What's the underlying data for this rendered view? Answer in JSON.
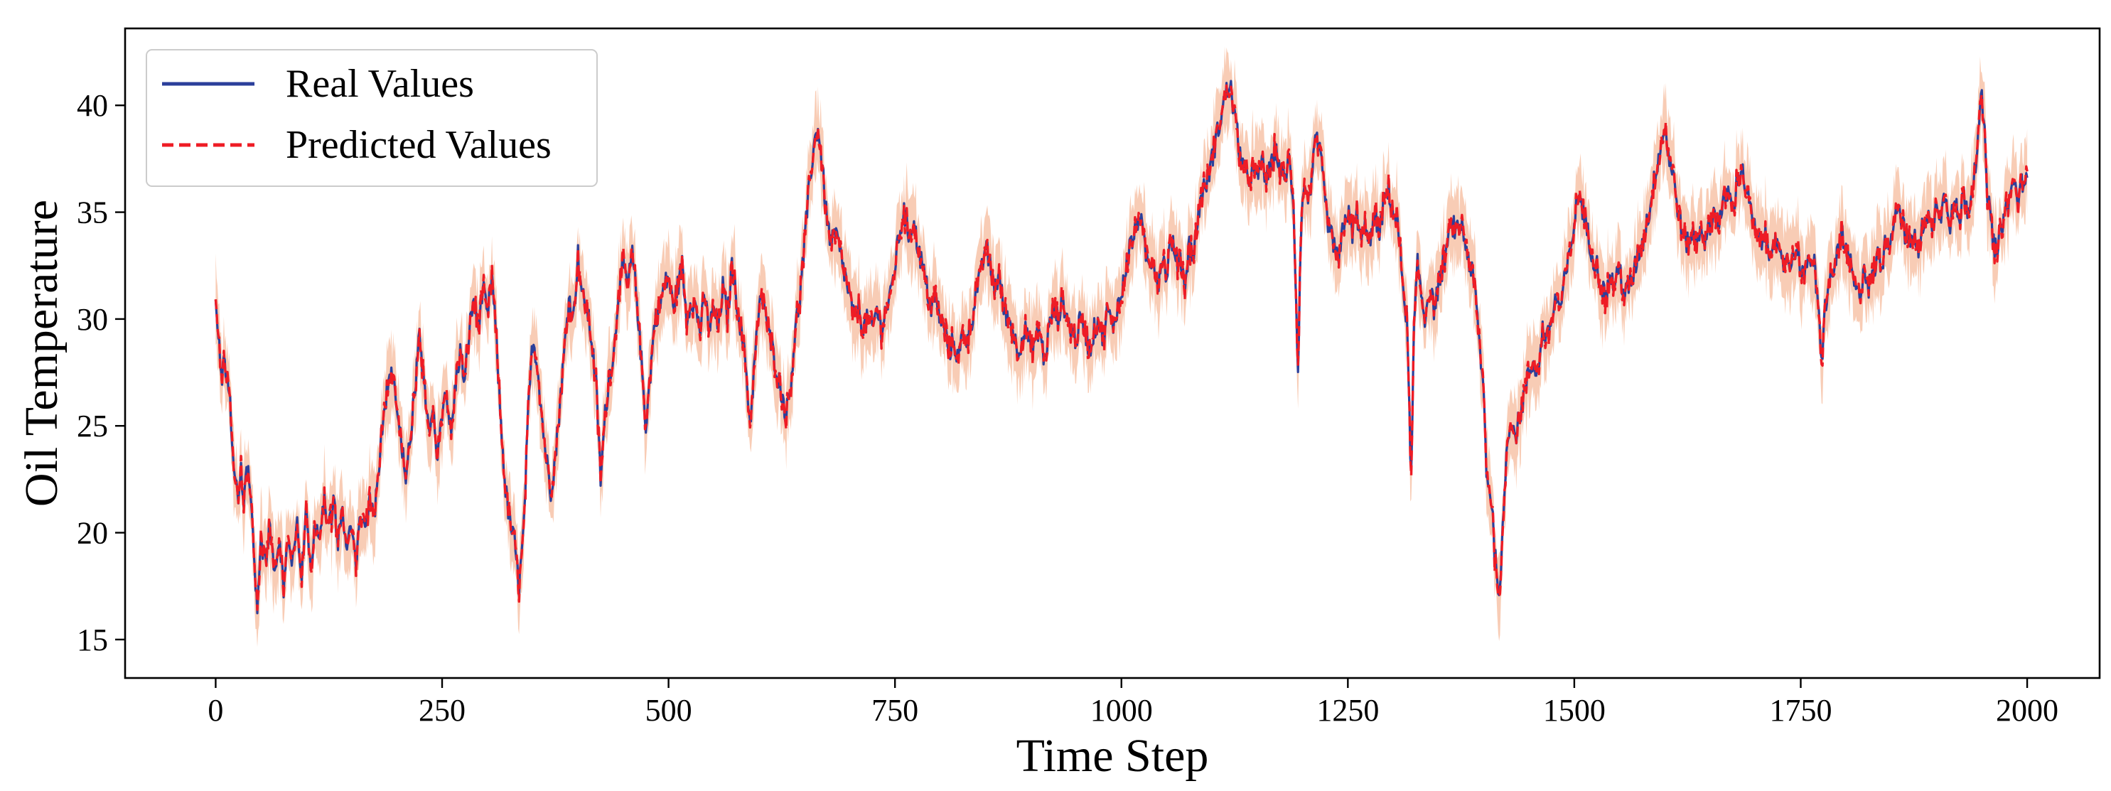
{
  "chart_data": {
    "type": "line",
    "title": "",
    "xlabel": "Time Step",
    "ylabel": "Oil Temperature",
    "xlim": [
      -100,
      2080
    ],
    "ylim": [
      13.2,
      43.6
    ],
    "xticks": [
      0,
      250,
      500,
      750,
      1000,
      1250,
      1500,
      1750,
      2000
    ],
    "yticks": [
      15,
      20,
      25,
      30,
      35,
      40
    ],
    "grid": false,
    "legend": {
      "position": "top-left"
    },
    "colors": {
      "real": "#2b3f9b",
      "predicted": "#ee1c25",
      "band": "#f7c3a8"
    },
    "series": [
      {
        "name": "Real Values",
        "style": "solid"
      },
      {
        "name": "Predicted Values",
        "style": "dashed"
      }
    ],
    "x_range": [
      0,
      2000
    ],
    "anchors": [
      [
        0,
        30.5
      ],
      [
        3,
        29.5
      ],
      [
        6,
        27.2
      ],
      [
        9,
        27.8
      ],
      [
        12,
        27.5
      ],
      [
        15,
        27.0
      ],
      [
        18,
        24.5
      ],
      [
        21,
        22.8
      ],
      [
        25,
        21.0
      ],
      [
        28,
        22.8
      ],
      [
        31,
        21.5
      ],
      [
        34,
        23.5
      ],
      [
        37,
        22.2
      ],
      [
        40,
        20.8
      ],
      [
        43,
        18.2
      ],
      [
        46,
        16.5
      ],
      [
        50,
        19.8
      ],
      [
        55,
        18.5
      ],
      [
        60,
        20.5
      ],
      [
        65,
        18.2
      ],
      [
        70,
        19.8
      ],
      [
        75,
        17.5
      ],
      [
        80,
        19.5
      ],
      [
        85,
        18.5
      ],
      [
        90,
        20.2
      ],
      [
        95,
        18.0
      ],
      [
        100,
        21.0
      ],
      [
        105,
        18.5
      ],
      [
        110,
        20.5
      ],
      [
        115,
        19.5
      ],
      [
        120,
        21.5
      ],
      [
        125,
        20.0
      ],
      [
        130,
        21.5
      ],
      [
        135,
        19.5
      ],
      [
        140,
        21.2
      ],
      [
        145,
        19.0
      ],
      [
        150,
        20.5
      ],
      [
        155,
        18.5
      ],
      [
        160,
        21.0
      ],
      [
        165,
        20.0
      ],
      [
        170,
        21.5
      ],
      [
        175,
        20.8
      ],
      [
        180,
        23.0
      ],
      [
        185,
        25.5
      ],
      [
        190,
        26.8
      ],
      [
        195,
        27.5
      ],
      [
        200,
        26.0
      ],
      [
        205,
        24.0
      ],
      [
        210,
        22.8
      ],
      [
        215,
        24.5
      ],
      [
        220,
        26.5
      ],
      [
        225,
        29.2
      ],
      [
        230,
        27.0
      ],
      [
        235,
        25.0
      ],
      [
        240,
        25.5
      ],
      [
        245,
        23.5
      ],
      [
        250,
        25.5
      ],
      [
        255,
        26.5
      ],
      [
        260,
        24.5
      ],
      [
        265,
        27.0
      ],
      [
        270,
        28.5
      ],
      [
        275,
        27.0
      ],
      [
        280,
        29.5
      ],
      [
        285,
        31.0
      ],
      [
        290,
        29.5
      ],
      [
        295,
        31.5
      ],
      [
        300,
        30.0
      ],
      [
        305,
        32.0
      ],
      [
        310,
        29.0
      ],
      [
        315,
        25.0
      ],
      [
        320,
        22.0
      ],
      [
        325,
        20.5
      ],
      [
        330,
        19.5
      ],
      [
        335,
        17.5
      ],
      [
        340,
        20.0
      ],
      [
        345,
        25.5
      ],
      [
        350,
        29.0
      ],
      [
        355,
        28.0
      ],
      [
        360,
        25.5
      ],
      [
        365,
        23.5
      ],
      [
        370,
        22.0
      ],
      [
        375,
        23.5
      ],
      [
        380,
        26.0
      ],
      [
        385,
        28.5
      ],
      [
        390,
        31.0
      ],
      [
        395,
        30.0
      ],
      [
        400,
        33.0
      ],
      [
        405,
        31.0
      ],
      [
        410,
        30.5
      ],
      [
        415,
        29.0
      ],
      [
        420,
        27.0
      ],
      [
        425,
        22.5
      ],
      [
        430,
        25.5
      ],
      [
        435,
        27.5
      ],
      [
        440,
        28.5
      ],
      [
        445,
        31.5
      ],
      [
        450,
        32.5
      ],
      [
        455,
        31.5
      ],
      [
        460,
        33.0
      ],
      [
        465,
        31.0
      ],
      [
        470,
        28.0
      ],
      [
        475,
        25.0
      ],
      [
        480,
        27.5
      ],
      [
        485,
        30.0
      ],
      [
        490,
        30.5
      ],
      [
        495,
        31.5
      ],
      [
        500,
        32.0
      ],
      [
        505,
        30.5
      ],
      [
        510,
        31.5
      ],
      [
        515,
        32.5
      ],
      [
        520,
        30.0
      ],
      [
        525,
        31.0
      ],
      [
        530,
        30.5
      ],
      [
        535,
        29.5
      ],
      [
        540,
        31.0
      ],
      [
        545,
        29.5
      ],
      [
        550,
        30.5
      ],
      [
        555,
        29.5
      ],
      [
        560,
        31.5
      ],
      [
        565,
        30.0
      ],
      [
        570,
        32.5
      ],
      [
        575,
        31.0
      ],
      [
        580,
        29.5
      ],
      [
        585,
        28.0
      ],
      [
        590,
        25.0
      ],
      [
        595,
        28.0
      ],
      [
        600,
        30.5
      ],
      [
        605,
        31.0
      ],
      [
        610,
        29.5
      ],
      [
        615,
        28.5
      ],
      [
        620,
        27.5
      ],
      [
        625,
        26.5
      ],
      [
        630,
        25.5
      ],
      [
        635,
        27.0
      ],
      [
        640,
        29.5
      ],
      [
        645,
        31.0
      ],
      [
        650,
        33.5
      ],
      [
        655,
        36.0
      ],
      [
        660,
        38.0
      ],
      [
        665,
        39.0
      ],
      [
        670,
        37.0
      ],
      [
        675,
        34.5
      ],
      [
        680,
        33.5
      ],
      [
        685,
        34.0
      ],
      [
        690,
        33.0
      ],
      [
        695,
        32.0
      ],
      [
        700,
        31.0
      ],
      [
        705,
        30.0
      ],
      [
        710,
        30.5
      ],
      [
        715,
        29.5
      ],
      [
        720,
        30.0
      ],
      [
        725,
        29.5
      ],
      [
        730,
        30.5
      ],
      [
        735,
        29.5
      ],
      [
        740,
        30.5
      ],
      [
        745,
        31.0
      ],
      [
        750,
        32.5
      ],
      [
        755,
        34.0
      ],
      [
        760,
        35.0
      ],
      [
        765,
        34.0
      ],
      [
        770,
        34.5
      ],
      [
        775,
        33.5
      ],
      [
        780,
        32.5
      ],
      [
        785,
        31.5
      ],
      [
        790,
        30.5
      ],
      [
        795,
        31.0
      ],
      [
        800,
        30.0
      ],
      [
        805,
        29.5
      ],
      [
        810,
        28.5
      ],
      [
        815,
        29.0
      ],
      [
        820,
        28.0
      ],
      [
        825,
        29.5
      ],
      [
        830,
        29.0
      ],
      [
        835,
        30.0
      ],
      [
        840,
        31.5
      ],
      [
        845,
        32.0
      ],
      [
        850,
        33.5
      ],
      [
        855,
        32.5
      ],
      [
        860,
        31.5
      ],
      [
        865,
        32.0
      ],
      [
        870,
        30.5
      ],
      [
        875,
        30.0
      ],
      [
        880,
        29.5
      ],
      [
        885,
        28.5
      ],
      [
        890,
        29.0
      ],
      [
        895,
        29.5
      ],
      [
        900,
        28.5
      ],
      [
        905,
        29.0
      ],
      [
        910,
        29.5
      ],
      [
        915,
        28.0
      ],
      [
        920,
        29.5
      ],
      [
        925,
        30.5
      ],
      [
        930,
        30.0
      ],
      [
        935,
        31.0
      ],
      [
        940,
        30.0
      ],
      [
        945,
        29.5
      ],
      [
        950,
        29.0
      ],
      [
        955,
        30.0
      ],
      [
        960,
        29.5
      ],
      [
        965,
        28.5
      ],
      [
        970,
        29.5
      ],
      [
        975,
        30.0
      ],
      [
        980,
        29.0
      ],
      [
        985,
        30.5
      ],
      [
        990,
        29.5
      ],
      [
        995,
        30.5
      ],
      [
        1000,
        31.0
      ],
      [
        1005,
        32.5
      ],
      [
        1010,
        33.5
      ],
      [
        1015,
        34.0
      ],
      [
        1020,
        35.0
      ],
      [
        1025,
        33.5
      ],
      [
        1030,
        32.5
      ],
      [
        1035,
        33.0
      ],
      [
        1040,
        31.5
      ],
      [
        1045,
        33.0
      ],
      [
        1050,
        32.0
      ],
      [
        1055,
        34.0
      ],
      [
        1060,
        32.5
      ],
      [
        1065,
        33.0
      ],
      [
        1070,
        31.5
      ],
      [
        1075,
        33.5
      ],
      [
        1080,
        33.0
      ],
      [
        1085,
        35.0
      ],
      [
        1090,
        36.0
      ],
      [
        1095,
        36.5
      ],
      [
        1100,
        37.5
      ],
      [
        1105,
        38.5
      ],
      [
        1110,
        39.5
      ],
      [
        1115,
        40.5
      ],
      [
        1120,
        41.0
      ],
      [
        1125,
        39.5
      ],
      [
        1130,
        38.0
      ],
      [
        1135,
        37.0
      ],
      [
        1140,
        36.5
      ],
      [
        1145,
        37.0
      ],
      [
        1150,
        36.5
      ],
      [
        1155,
        37.5
      ],
      [
        1160,
        36.5
      ],
      [
        1165,
        37.0
      ],
      [
        1170,
        38.0
      ],
      [
        1175,
        37.0
      ],
      [
        1180,
        36.5
      ],
      [
        1185,
        37.5
      ],
      [
        1190,
        35.5
      ],
      [
        1195,
        27.5
      ],
      [
        1198,
        34.0
      ],
      [
        1202,
        36.5
      ],
      [
        1205,
        35.5
      ],
      [
        1210,
        36.5
      ],
      [
        1215,
        38.5
      ],
      [
        1220,
        37.5
      ],
      [
        1225,
        35.5
      ],
      [
        1230,
        34.0
      ],
      [
        1235,
        33.5
      ],
      [
        1240,
        32.5
      ],
      [
        1245,
        34.5
      ],
      [
        1250,
        35.0
      ],
      [
        1255,
        34.0
      ],
      [
        1260,
        35.0
      ],
      [
        1265,
        33.5
      ],
      [
        1270,
        34.5
      ],
      [
        1275,
        33.5
      ],
      [
        1280,
        35.0
      ],
      [
        1285,
        34.0
      ],
      [
        1290,
        35.5
      ],
      [
        1295,
        36.0
      ],
      [
        1300,
        35.0
      ],
      [
        1305,
        34.5
      ],
      [
        1310,
        32.0
      ],
      [
        1315,
        30.0
      ],
      [
        1320,
        22.5
      ],
      [
        1323,
        29.5
      ],
      [
        1327,
        32.5
      ],
      [
        1330,
        31.5
      ],
      [
        1335,
        30.0
      ],
      [
        1340,
        31.5
      ],
      [
        1345,
        30.5
      ],
      [
        1350,
        31.5
      ],
      [
        1355,
        32.5
      ],
      [
        1360,
        33.5
      ],
      [
        1365,
        34.5
      ],
      [
        1370,
        34.0
      ],
      [
        1375,
        34.5
      ],
      [
        1380,
        33.5
      ],
      [
        1385,
        32.5
      ],
      [
        1390,
        31.5
      ],
      [
        1395,
        29.0
      ],
      [
        1400,
        26.5
      ],
      [
        1403,
        23.0
      ],
      [
        1406,
        22.0
      ],
      [
        1409,
        21.5
      ],
      [
        1412,
        19.0
      ],
      [
        1415,
        18.0
      ],
      [
        1418,
        17.0
      ],
      [
        1421,
        20.0
      ],
      [
        1424,
        23.0
      ],
      [
        1427,
        24.5
      ],
      [
        1430,
        25.5
      ],
      [
        1435,
        24.5
      ],
      [
        1440,
        25.5
      ],
      [
        1445,
        26.5
      ],
      [
        1450,
        27.5
      ],
      [
        1455,
        28.0
      ],
      [
        1460,
        27.5
      ],
      [
        1465,
        29.5
      ],
      [
        1470,
        29.0
      ],
      [
        1475,
        30.0
      ],
      [
        1480,
        31.0
      ],
      [
        1485,
        30.5
      ],
      [
        1490,
        32.0
      ],
      [
        1495,
        33.0
      ],
      [
        1500,
        34.5
      ],
      [
        1505,
        36.0
      ],
      [
        1510,
        35.0
      ],
      [
        1515,
        34.0
      ],
      [
        1520,
        33.0
      ],
      [
        1525,
        32.5
      ],
      [
        1530,
        31.5
      ],
      [
        1535,
        31.0
      ],
      [
        1540,
        32.0
      ],
      [
        1545,
        31.5
      ],
      [
        1550,
        32.5
      ],
      [
        1555,
        31.0
      ],
      [
        1560,
        31.5
      ],
      [
        1565,
        32.0
      ],
      [
        1570,
        33.0
      ],
      [
        1575,
        33.5
      ],
      [
        1580,
        34.5
      ],
      [
        1585,
        35.5
      ],
      [
        1590,
        37.0
      ],
      [
        1595,
        38.0
      ],
      [
        1600,
        39.0
      ],
      [
        1605,
        37.5
      ],
      [
        1610,
        36.5
      ],
      [
        1615,
        35.0
      ],
      [
        1620,
        34.0
      ],
      [
        1625,
        33.5
      ],
      [
        1630,
        34.0
      ],
      [
        1635,
        33.5
      ],
      [
        1640,
        34.5
      ],
      [
        1645,
        33.5
      ],
      [
        1650,
        34.5
      ],
      [
        1655,
        35.0
      ],
      [
        1660,
        34.5
      ],
      [
        1665,
        35.5
      ],
      [
        1670,
        36.0
      ],
      [
        1675,
        35.0
      ],
      [
        1680,
        36.5
      ],
      [
        1685,
        37.0
      ],
      [
        1690,
        36.0
      ],
      [
        1695,
        35.0
      ],
      [
        1700,
        34.0
      ],
      [
        1705,
        33.5
      ],
      [
        1710,
        34.0
      ],
      [
        1715,
        33.0
      ],
      [
        1720,
        34.0
      ],
      [
        1725,
        33.0
      ],
      [
        1730,
        32.5
      ],
      [
        1735,
        33.0
      ],
      [
        1740,
        32.5
      ],
      [
        1745,
        33.5
      ],
      [
        1750,
        32.5
      ],
      [
        1755,
        32.0
      ],
      [
        1760,
        33.0
      ],
      [
        1765,
        32.5
      ],
      [
        1770,
        30.0
      ],
      [
        1773,
        28.0
      ],
      [
        1777,
        30.5
      ],
      [
        1780,
        31.5
      ],
      [
        1785,
        32.0
      ],
      [
        1790,
        33.0
      ],
      [
        1795,
        34.0
      ],
      [
        1800,
        33.0
      ],
      [
        1805,
        32.5
      ],
      [
        1810,
        31.5
      ],
      [
        1815,
        31.0
      ],
      [
        1820,
        32.5
      ],
      [
        1825,
        31.5
      ],
      [
        1830,
        32.0
      ],
      [
        1835,
        33.0
      ],
      [
        1840,
        32.5
      ],
      [
        1845,
        34.0
      ],
      [
        1850,
        33.5
      ],
      [
        1855,
        35.5
      ],
      [
        1860,
        35.0
      ],
      [
        1865,
        34.0
      ],
      [
        1870,
        33.5
      ],
      [
        1875,
        34.0
      ],
      [
        1880,
        33.0
      ],
      [
        1885,
        34.5
      ],
      [
        1890,
        35.0
      ],
      [
        1895,
        34.0
      ],
      [
        1900,
        35.5
      ],
      [
        1905,
        35.0
      ],
      [
        1910,
        36.0
      ],
      [
        1915,
        34.5
      ],
      [
        1920,
        35.5
      ],
      [
        1925,
        34.5
      ],
      [
        1930,
        36.0
      ],
      [
        1935,
        35.0
      ],
      [
        1940,
        36.5
      ],
      [
        1945,
        38.0
      ],
      [
        1950,
        40.5
      ],
      [
        1953,
        38.5
      ],
      [
        1956,
        36.0
      ],
      [
        1960,
        34.5
      ],
      [
        1963,
        33.5
      ],
      [
        1967,
        33.0
      ],
      [
        1970,
        34.0
      ],
      [
        1975,
        35.0
      ],
      [
        1980,
        35.5
      ],
      [
        1985,
        36.5
      ],
      [
        1990,
        35.5
      ],
      [
        1995,
        36.5
      ],
      [
        2000,
        36.5
      ]
    ]
  }
}
